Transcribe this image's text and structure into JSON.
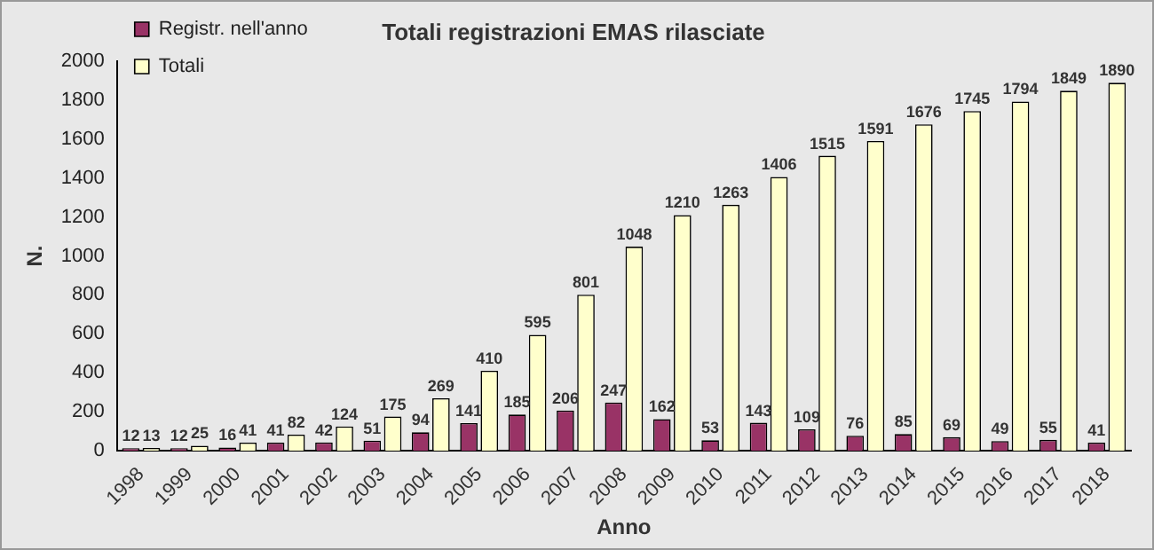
{
  "chart_data": {
    "type": "bar",
    "title": "Totali registrazioni EMAS rilasciate",
    "xlabel": "Anno",
    "ylabel": "N.",
    "categories": [
      "1998",
      "1999",
      "2000",
      "2001",
      "2002",
      "2003",
      "2004",
      "2005",
      "2006",
      "2007",
      "2008",
      "2009",
      "2010",
      "2011",
      "2012",
      "2013",
      "2014",
      "2015",
      "2016",
      "2017",
      "2018"
    ],
    "series": [
      {
        "name": "Registr. nell'anno",
        "color": "#993366",
        "values": [
          12,
          12,
          16,
          41,
          42,
          51,
          94,
          141,
          185,
          206,
          247,
          162,
          53,
          143,
          109,
          76,
          85,
          69,
          49,
          55,
          41
        ]
      },
      {
        "name": "Totali",
        "color": "#ffffcc",
        "values": [
          13,
          25,
          41,
          82,
          124,
          175,
          269,
          410,
          595,
          801,
          1048,
          1210,
          1263,
          1406,
          1515,
          1591,
          1676,
          1745,
          1794,
          1849,
          1890
        ]
      }
    ],
    "ylim": [
      0,
      2000
    ],
    "yticks": [
      0,
      200,
      400,
      600,
      800,
      1000,
      1200,
      1400,
      1600,
      1800,
      2000
    ],
    "grid": false,
    "legend": "top left",
    "data_labels": true
  }
}
